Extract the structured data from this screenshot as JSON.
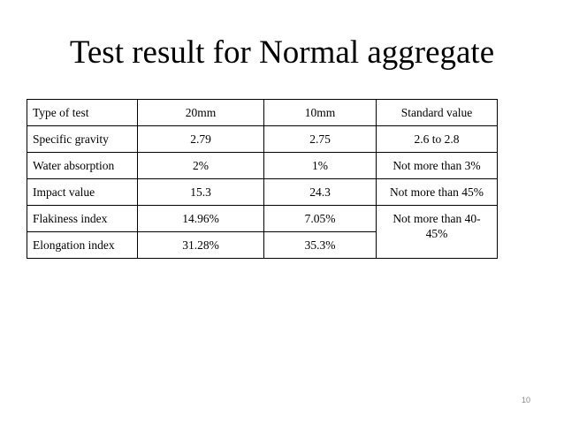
{
  "header": {
    "title": "Test result for Normal aggregate"
  },
  "table": {
    "rows": [
      [
        "Type of test",
        "20mm",
        "10mm",
        "Standard value"
      ],
      [
        "Specific gravity",
        "2.79",
        "2.75",
        "2.6 to 2.8"
      ],
      [
        "Water absorption",
        "2%",
        "1%",
        "Not more than 3%"
      ],
      [
        "Impact value",
        "15.3",
        "24.3",
        "Not more than 45%"
      ],
      [
        "Flakiness index",
        "14.96%",
        "7.05%",
        "Not more than 40-45%"
      ],
      [
        "Elongation index",
        "31.28%",
        "35.3%"
      ]
    ]
  },
  "footer": {
    "page_number": "10"
  }
}
